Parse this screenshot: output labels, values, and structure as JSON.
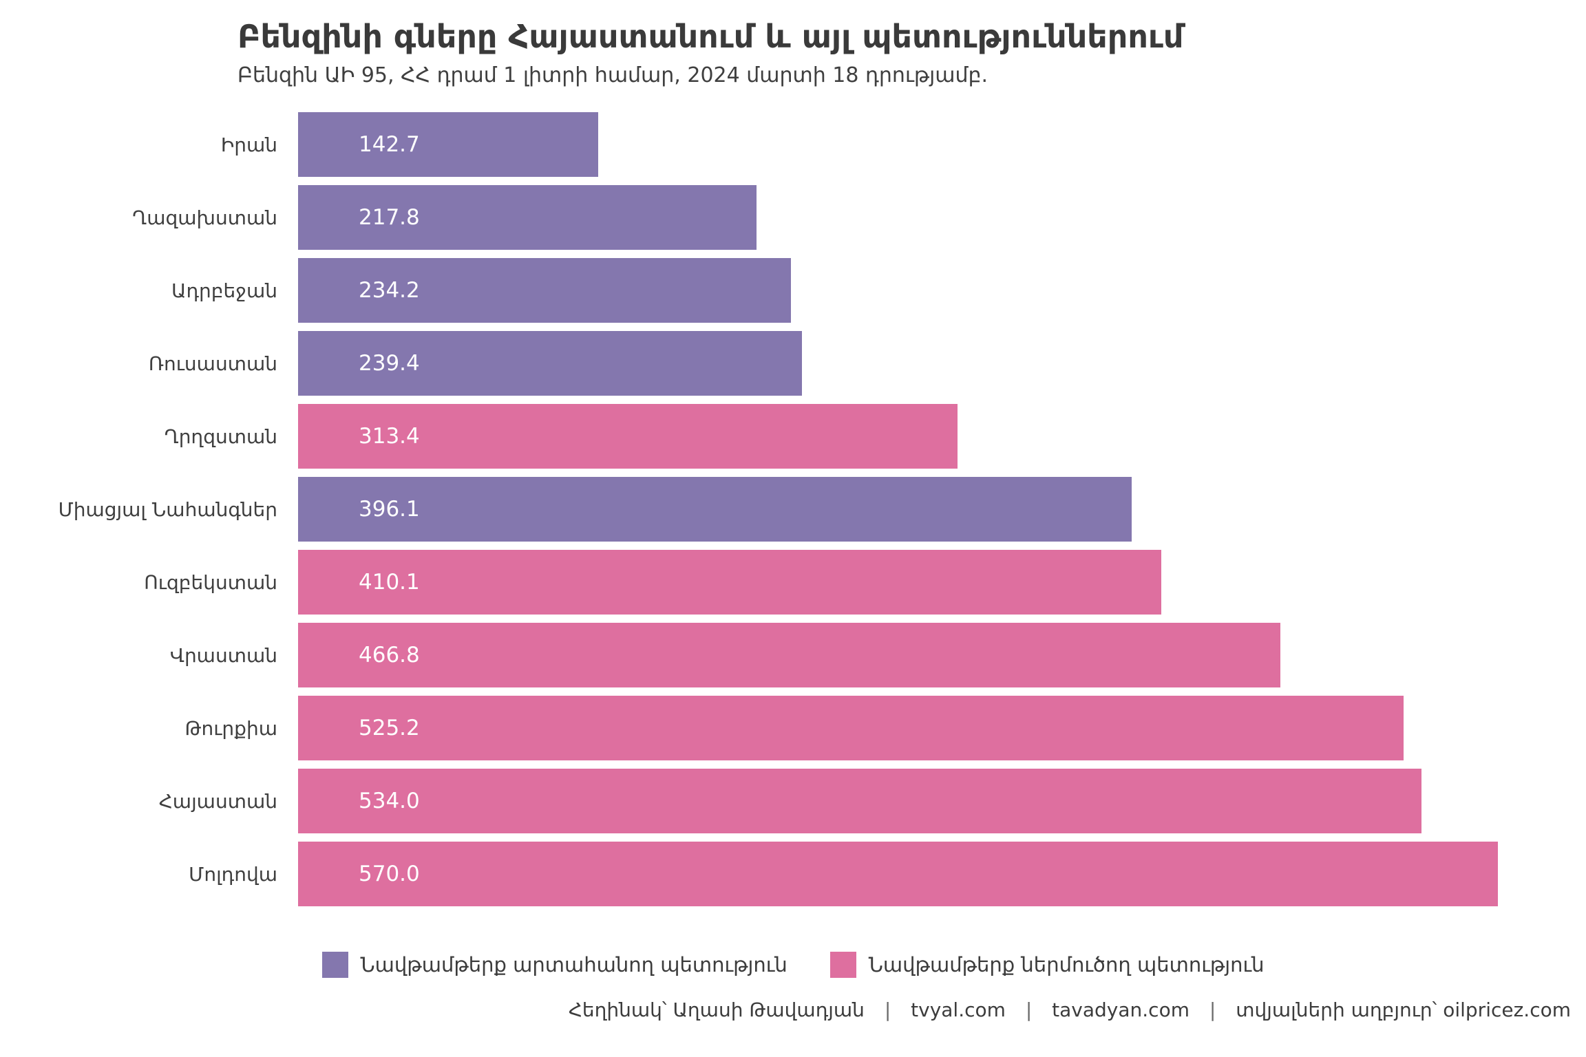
{
  "title": "Բենզինի գները Հայաստանում և այլ պետություններում",
  "subtitle": "Բենզին ԱԻ 95, ՀՀ դրամ 1 լիտրի համար, 2024 մարտի 18 դրությամբ.",
  "colors": {
    "exporter": "#8477ae",
    "importer": "#de6f9f",
    "title_text": "#3a3a3a",
    "label_text": "#3f3f3f",
    "value_text": "#ffffff"
  },
  "chart_data": {
    "type": "bar",
    "orientation": "horizontal",
    "title": "Բենզինի գները Հայաստանում և այլ պետություններում",
    "subtitle": "Բենզին ԱԻ 95, ՀՀ դրամ 1 լիտրի համար, 2024 մարտի 18 դրությամբ.",
    "xlabel": "",
    "ylabel": "",
    "xlim": [
      0,
      612
    ],
    "grid": false,
    "legend_position": "bottom",
    "value_labels": "inside-start",
    "bars": [
      {
        "label": "Իրան",
        "value": 142.7,
        "display": "142.7",
        "group": "exporter"
      },
      {
        "label": "Ղազախստան",
        "value": 217.8,
        "display": "217.8",
        "group": "exporter"
      },
      {
        "label": "Ադրբեջան",
        "value": 234.2,
        "display": "234.2",
        "group": "exporter"
      },
      {
        "label": "Ռուսաստան",
        "value": 239.4,
        "display": "239.4",
        "group": "exporter"
      },
      {
        "label": "Ղրղզստան",
        "value": 313.4,
        "display": "313.4",
        "group": "importer"
      },
      {
        "label": "Միացյալ Նահանգներ",
        "value": 396.1,
        "display": "396.1",
        "group": "exporter"
      },
      {
        "label": "Ուզբեկստան",
        "value": 410.1,
        "display": "410.1",
        "group": "importer"
      },
      {
        "label": "Վրաստան",
        "value": 466.8,
        "display": "466.8",
        "group": "importer"
      },
      {
        "label": "Թուրքիա",
        "value": 525.2,
        "display": "525.2",
        "group": "importer"
      },
      {
        "label": "Հայաստան",
        "value": 534.0,
        "display": "534.0",
        "group": "importer"
      },
      {
        "label": "Մոլդովա",
        "value": 570.0,
        "display": "570.0",
        "group": "importer"
      }
    ],
    "legend": [
      {
        "group": "exporter",
        "label": "Նավթամթերք արտահանող պետություն",
        "color": "#8477ae"
      },
      {
        "group": "importer",
        "label": "Նավթամթերք ներմուծող պետություն",
        "color": "#de6f9f"
      }
    ]
  },
  "legend": {
    "exporter_label": "Նավթամթերք արտահանող պետություն",
    "importer_label": "Նավթամթերք ներմուծող պետություն"
  },
  "footer": {
    "author": "Հեղինակ՝ Աղասի Թավադյան",
    "separator": "|",
    "site1": "tvyal.com",
    "site2": "tavadyan.com",
    "source": "տվյալների աղբյուր՝ oilpricez.com"
  }
}
